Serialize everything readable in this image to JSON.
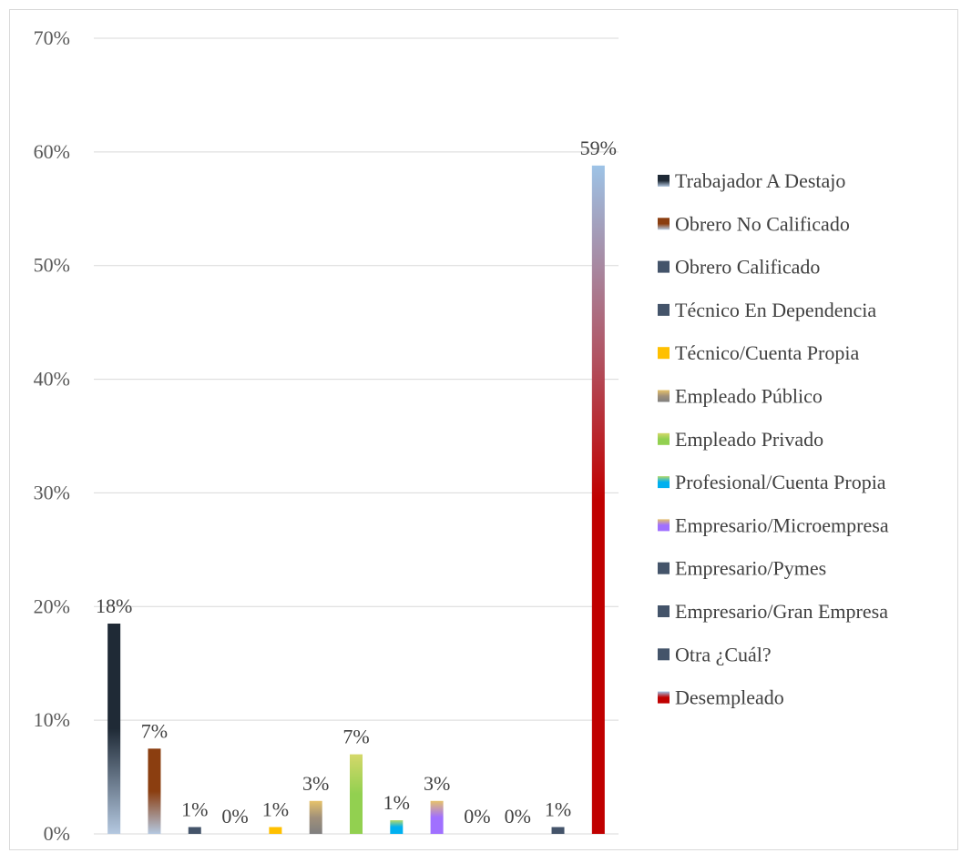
{
  "chart_data": {
    "type": "bar",
    "title": "",
    "xlabel": "",
    "ylabel": "",
    "ylim": [
      0,
      70
    ],
    "y_ticks": [
      "0%",
      "10%",
      "20%",
      "30%",
      "40%",
      "50%",
      "60%",
      "70%"
    ],
    "grid": true,
    "legend_position": "right",
    "series": [
      {
        "name": "Trabajador A Destajo",
        "value": 18.5,
        "label": "18%",
        "colors": [
          "#1f2a36",
          "#1f2a36",
          "#b4c8e0"
        ]
      },
      {
        "name": "Obrero No Calificado",
        "value": 7.5,
        "label": "7%",
        "colors": [
          "#8b3e10",
          "#8b3e10",
          "#b4c8e0"
        ]
      },
      {
        "name": "Obrero Calificado",
        "value": 0.6,
        "label": "1%",
        "colors": [
          "#44546a",
          "#44546a",
          "#44546a"
        ]
      },
      {
        "name": "Técnico En Dependencia",
        "value": 0,
        "label": "0%",
        "colors": [
          "#44546a",
          "#44546a",
          "#44546a"
        ]
      },
      {
        "name": "Técnico/Cuenta Propia",
        "value": 0.6,
        "label": "1%",
        "colors": [
          "#ffc000",
          "#ffc000",
          "#ffc000"
        ]
      },
      {
        "name": "Empleado Público",
        "value": 2.9,
        "label": "3%",
        "colors": [
          "#e6c26a",
          "#a0907a",
          "#7f7f7f"
        ]
      },
      {
        "name": "Empleado Privado",
        "value": 7.0,
        "label": "7%",
        "colors": [
          "#d4d86a",
          "#92d050",
          "#92d050"
        ]
      },
      {
        "name": "Profesional/Cuenta Propia",
        "value": 1.2,
        "label": "1%",
        "colors": [
          "#b5d86a",
          "#00b0f0",
          "#00b0f0"
        ]
      },
      {
        "name": "Empresario/Microempresa",
        "value": 2.9,
        "label": "3%",
        "colors": [
          "#e6c26a",
          "#a070ff",
          "#a070ff"
        ]
      },
      {
        "name": "Empresario/Pymes",
        "value": 0,
        "label": "0%",
        "colors": [
          "#44546a",
          "#44546a",
          "#44546a"
        ]
      },
      {
        "name": "Empresario/Gran Empresa",
        "value": 0,
        "label": "0%",
        "colors": [
          "#44546a",
          "#44546a",
          "#44546a"
        ]
      },
      {
        "name": "Otra ¿Cuál?",
        "value": 0.6,
        "label": "1%",
        "colors": [
          "#44546a",
          "#44546a",
          "#44546a"
        ]
      },
      {
        "name": "Desempleado",
        "value": 58.8,
        "label": "59%",
        "colors": [
          "#9dc3e6",
          "#c00000",
          "#c00000"
        ]
      }
    ]
  }
}
